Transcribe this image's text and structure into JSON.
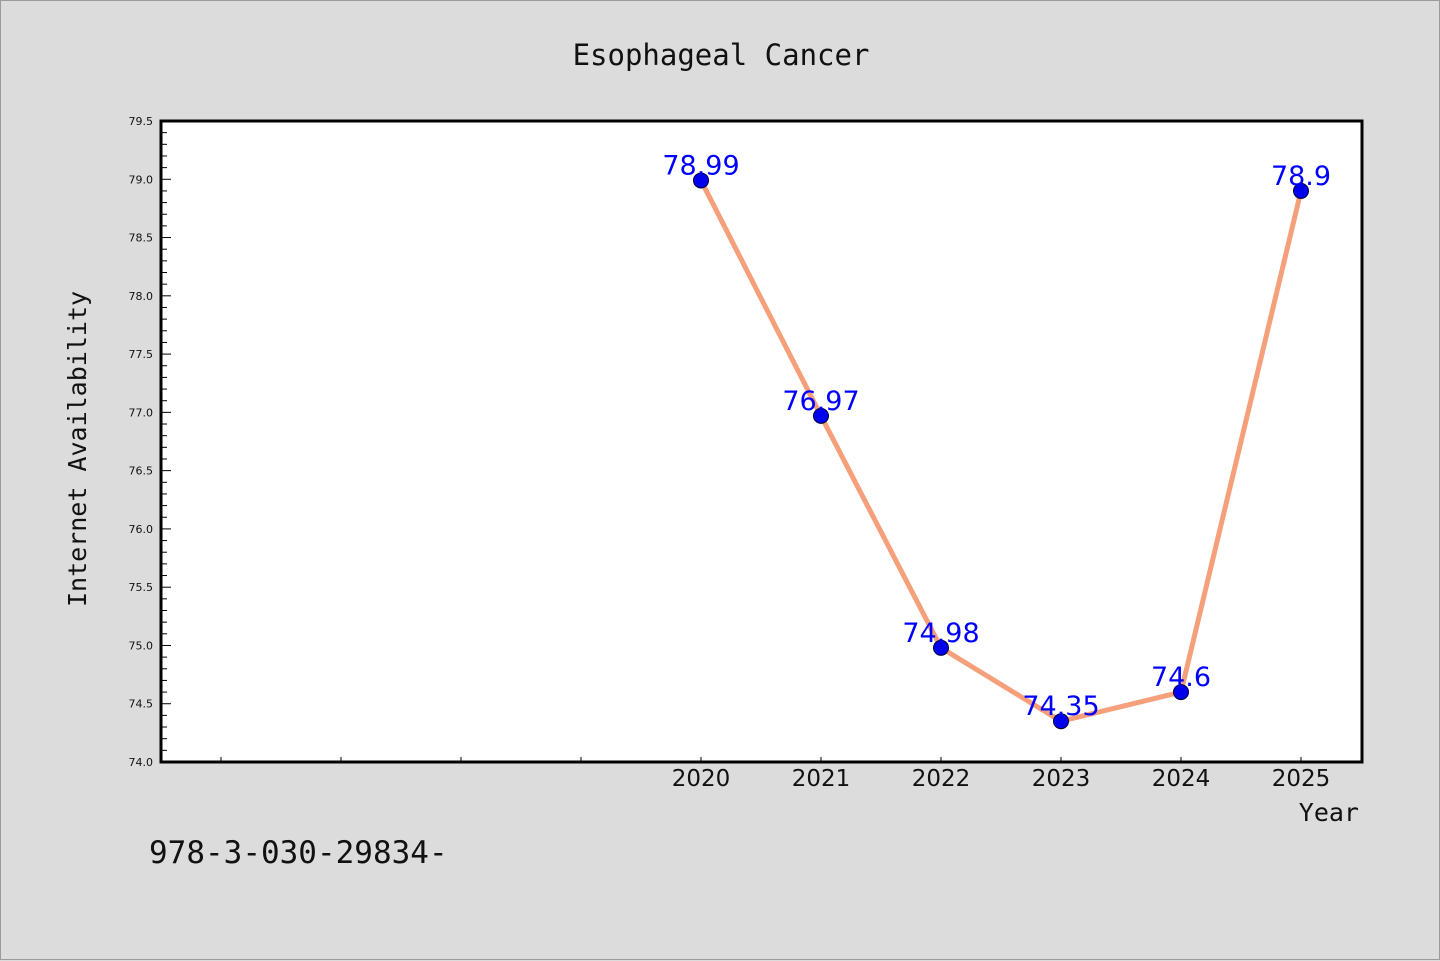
{
  "chart_data": {
    "type": "line",
    "title": "Esophageal Cancer",
    "xlabel": "Year",
    "ylabel": "Internet Availability",
    "ylim": [
      74.0,
      79.5
    ],
    "yticks": [
      "74.0",
      "74.5",
      "75.0",
      "75.5",
      "76.0",
      "76.5",
      "77.0",
      "77.5",
      "78.0",
      "78.5",
      "79.0",
      "79.5"
    ],
    "x": [
      "2020",
      "2021",
      "2022",
      "2023",
      "2024",
      "2025"
    ],
    "values": [
      78.99,
      76.97,
      74.98,
      74.35,
      74.6,
      78.9
    ],
    "data_labels": [
      "78.99",
      "76.97",
      "74.98",
      "74.35",
      "74.6",
      "78.9"
    ],
    "grid": false,
    "line_color": "#f5a07a",
    "marker_color": "#0000ee",
    "label_color": "#0000ff"
  },
  "footer": {
    "code": "978-3-030-29834-"
  }
}
